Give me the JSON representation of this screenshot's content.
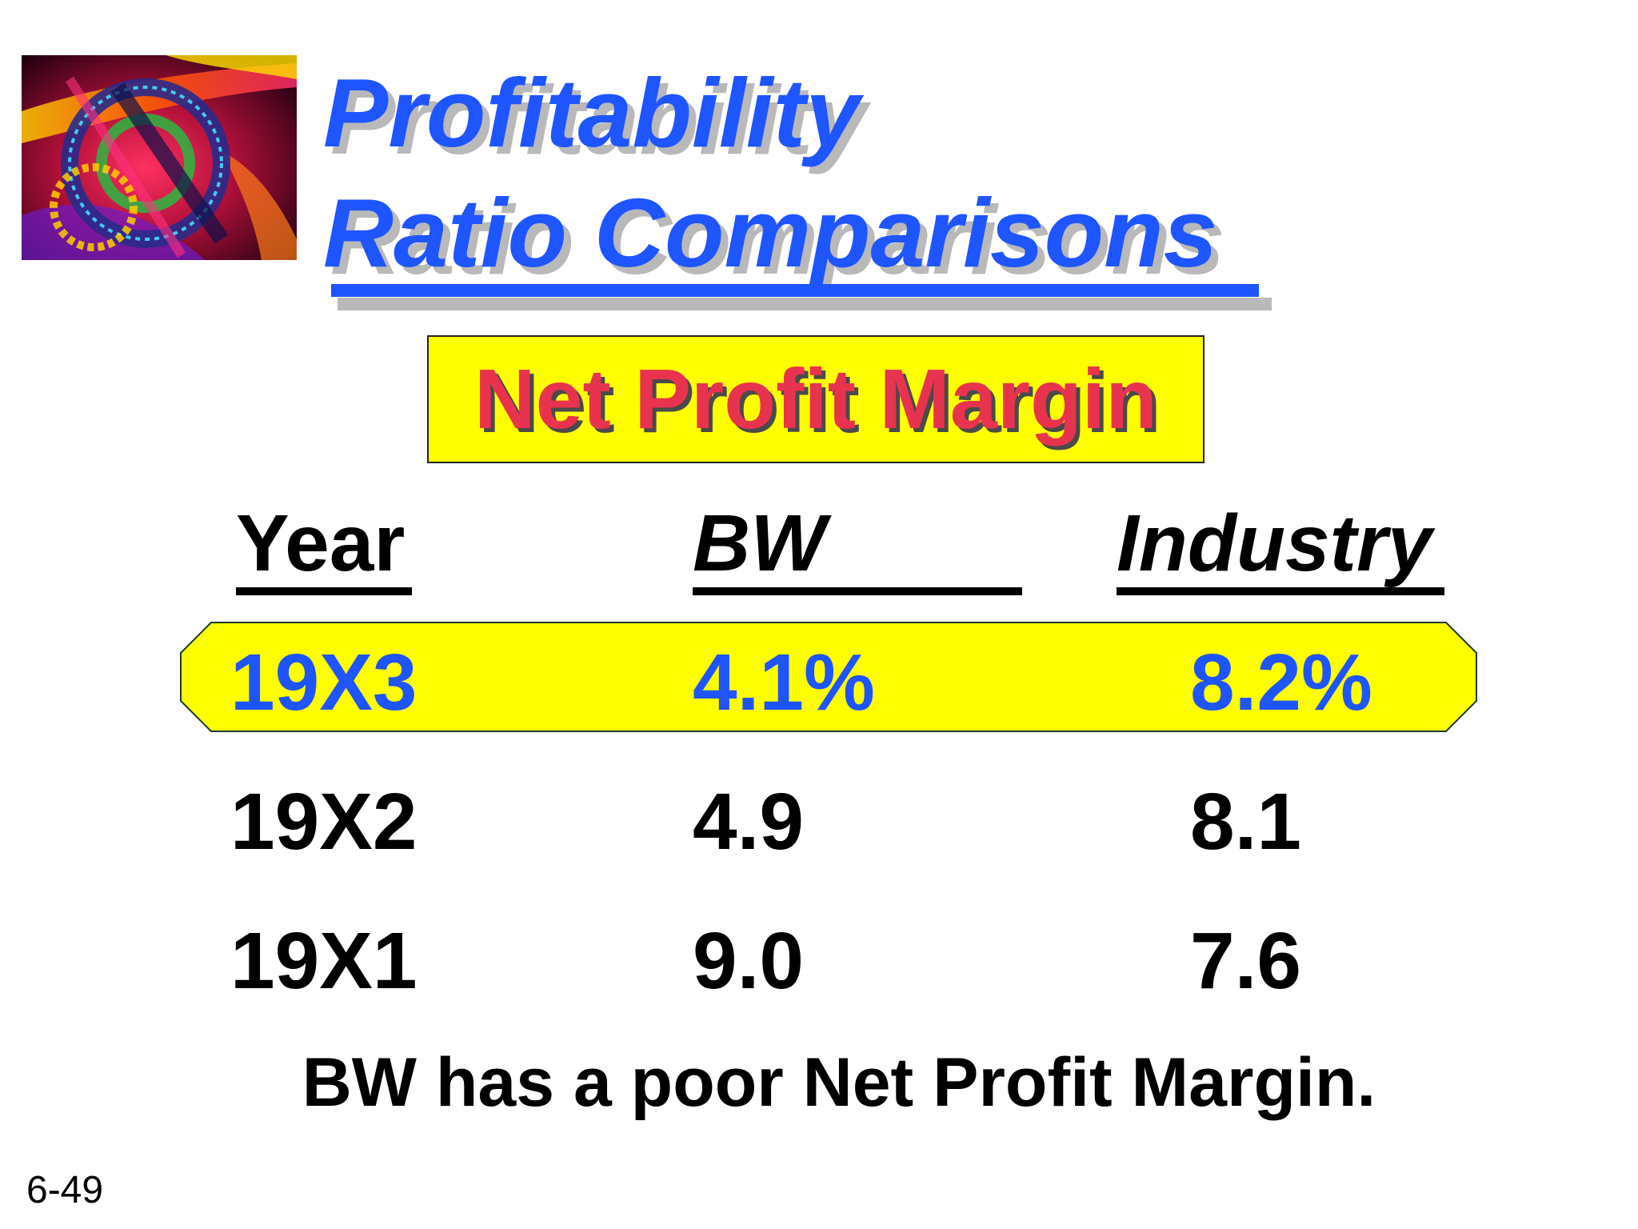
{
  "title": {
    "line1": "Profitability",
    "line2": "Ratio Comparisons"
  },
  "subtitle": "Net Profit Margin",
  "table": {
    "headers": {
      "year": "Year",
      "bw": "BW",
      "industry": "Industry"
    },
    "rows": [
      {
        "year": "19X3",
        "bw": "4.1%",
        "industry": "8.2%",
        "highlighted": true
      },
      {
        "year": "19X2",
        "bw": "4.9",
        "industry": "8.1",
        "highlighted": false
      },
      {
        "year": "19X1",
        "bw": "9.0",
        "industry": "7.6",
        "highlighted": false
      }
    ]
  },
  "conclusion": "BW has a poor Net Profit Margin.",
  "slide_number": "6-49",
  "colors": {
    "title_blue": "#1f55ff",
    "subtitle_red": "#e8334f",
    "highlight_yellow": "#ffff00"
  }
}
